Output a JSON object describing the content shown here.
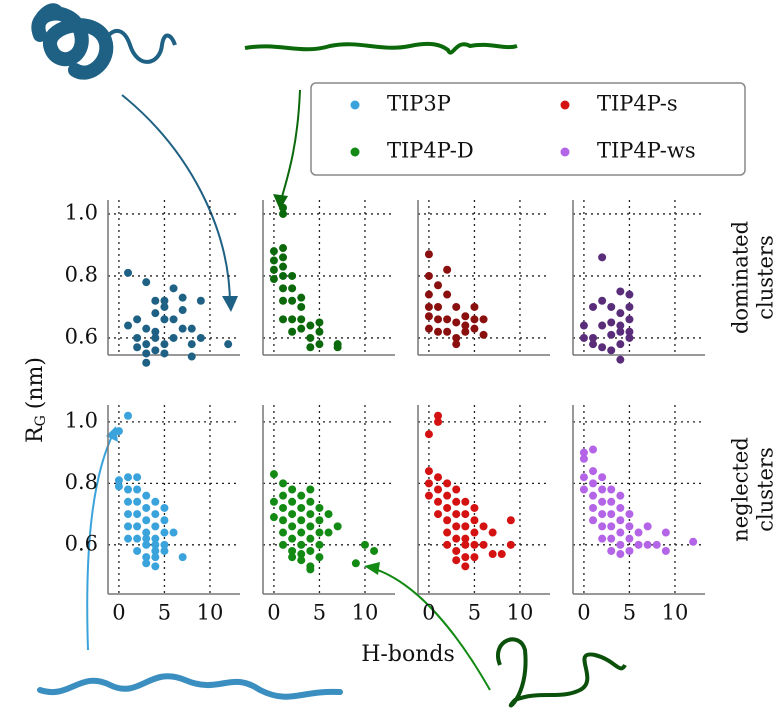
{
  "chart_data": {
    "type": "scatter",
    "xlabel": "H-bonds",
    "ylabel": "R",
    "ylabel_sub": "G",
    "ylabel_unit": "(nm)",
    "series": [
      {
        "name": "TIP3P",
        "color": "#3ba3dc"
      },
      {
        "name": "TIP4P-D",
        "color": "#138a13"
      },
      {
        "name": "TIP4P-s",
        "color": "#d41212"
      },
      {
        "name": "TIP4P-ws",
        "color": "#b464e6"
      }
    ],
    "xlim": [
      -1.2,
      13.3
    ],
    "xticks": [
      0,
      5,
      10
    ],
    "yticks": [
      0.6,
      0.8,
      {
        "value": 1,
        "label": "1.0"
      }
    ],
    "grid": true,
    "rows": [
      {
        "label": [
          "dominated",
          "clusters"
        ],
        "ylim": [
          0.545,
          1.045
        ]
      },
      {
        "label": [
          "neglected",
          "clusters"
        ],
        "ylim": [
          0.44,
          1.055
        ]
      }
    ],
    "panels": [
      {
        "row": 0,
        "col": 0,
        "color": "#1f6184",
        "x": [
          1,
          2,
          3,
          3,
          1,
          2,
          2,
          3,
          3,
          4,
          4,
          4,
          4,
          5,
          5,
          5,
          5,
          5,
          6,
          6,
          6,
          7,
          7,
          7,
          8,
          8,
          8,
          9,
          9,
          12,
          4,
          3
        ],
        "y": [
          0.81,
          0.66,
          0.78,
          0.63,
          0.64,
          0.6,
          0.57,
          0.55,
          0.52,
          0.6,
          0.62,
          0.68,
          0.72,
          0.66,
          0.7,
          0.72,
          0.58,
          0.55,
          0.6,
          0.66,
          0.76,
          0.63,
          0.69,
          0.73,
          0.54,
          0.58,
          0.63,
          0.72,
          0.6,
          0.58,
          0.56,
          0.58
        ]
      },
      {
        "row": 0,
        "col": 1,
        "color": "#0b690b",
        "x": [
          1,
          1,
          0,
          1,
          0,
          0,
          1,
          0,
          1,
          1,
          2,
          2,
          1,
          2,
          3,
          3,
          1,
          2,
          2,
          3,
          3,
          4,
          4,
          5,
          5,
          4,
          5,
          7,
          7,
          1
        ],
        "y": [
          1.02,
          1.0,
          0.88,
          0.89,
          0.85,
          0.82,
          0.86,
          0.79,
          0.8,
          0.83,
          0.8,
          0.76,
          0.72,
          0.72,
          0.73,
          0.7,
          0.66,
          0.66,
          0.62,
          0.63,
          0.66,
          0.64,
          0.6,
          0.65,
          0.62,
          0.57,
          0.58,
          0.58,
          0.57,
          0.76
        ]
      },
      {
        "row": 0,
        "col": 2,
        "color": "#8a1010",
        "x": [
          0,
          0,
          0,
          1,
          2,
          0,
          1,
          0,
          1,
          2,
          0,
          2,
          3,
          3,
          3,
          4,
          4,
          4,
          3,
          5,
          5,
          5,
          6,
          6,
          2,
          1
        ],
        "y": [
          0.87,
          0.8,
          0.74,
          0.77,
          0.82,
          0.7,
          0.7,
          0.67,
          0.66,
          0.66,
          0.63,
          0.62,
          0.7,
          0.65,
          0.6,
          0.67,
          0.64,
          0.62,
          0.58,
          0.7,
          0.66,
          0.63,
          0.61,
          0.66,
          0.74,
          0.62
        ]
      },
      {
        "row": 0,
        "col": 3,
        "color": "#5a2d7a",
        "x": [
          2,
          0,
          0,
          1,
          1,
          1,
          2,
          2,
          3,
          3,
          3,
          3,
          4,
          4,
          4,
          4,
          4,
          5,
          5,
          5,
          5,
          5,
          4,
          2
        ],
        "y": [
          0.86,
          0.64,
          0.6,
          0.7,
          0.6,
          0.58,
          0.64,
          0.57,
          0.7,
          0.65,
          0.61,
          0.56,
          0.75,
          0.68,
          0.64,
          0.62,
          0.53,
          0.74,
          0.7,
          0.66,
          0.62,
          0.6,
          0.58,
          0.72
        ]
      },
      {
        "row": 1,
        "col": 0,
        "color": "#3ba3dc",
        "x": [
          1,
          0,
          0,
          0,
          1,
          1,
          1,
          2,
          2,
          2,
          2,
          1,
          1,
          2,
          3,
          3,
          3,
          3,
          3,
          3,
          4,
          4,
          4,
          4,
          4,
          4,
          4,
          5,
          5,
          5,
          5,
          5,
          6,
          7,
          2,
          3,
          4,
          1,
          2,
          3
        ],
        "y": [
          1.02,
          0.97,
          0.81,
          0.79,
          0.82,
          0.78,
          0.74,
          0.82,
          0.78,
          0.74,
          0.7,
          0.7,
          0.66,
          0.66,
          0.76,
          0.72,
          0.68,
          0.64,
          0.6,
          0.56,
          0.74,
          0.7,
          0.66,
          0.62,
          0.6,
          0.56,
          0.53,
          0.72,
          0.68,
          0.64,
          0.6,
          0.58,
          0.64,
          0.56,
          0.62,
          0.62,
          0.58,
          0.62,
          0.58,
          0.54
        ]
      },
      {
        "row": 1,
        "col": 1,
        "color": "#138a13",
        "x": [
          0,
          0,
          0,
          1,
          1,
          1,
          1,
          1,
          2,
          2,
          2,
          2,
          2,
          3,
          3,
          3,
          3,
          3,
          3,
          4,
          4,
          4,
          4,
          4,
          4,
          4,
          5,
          5,
          5,
          5,
          5,
          6,
          6,
          7,
          9,
          10,
          11,
          2,
          3,
          4,
          1,
          2
        ],
        "y": [
          0.83,
          0.74,
          0.69,
          0.8,
          0.76,
          0.72,
          0.68,
          0.64,
          0.78,
          0.74,
          0.7,
          0.66,
          0.62,
          0.76,
          0.72,
          0.68,
          0.64,
          0.6,
          0.57,
          0.78,
          0.74,
          0.7,
          0.66,
          0.62,
          0.58,
          0.53,
          0.72,
          0.68,
          0.64,
          0.6,
          0.56,
          0.7,
          0.64,
          0.66,
          0.54,
          0.6,
          0.58,
          0.58,
          0.55,
          0.52,
          0.6,
          0.56
        ]
      },
      {
        "row": 1,
        "col": 2,
        "color": "#d41212",
        "x": [
          1,
          1,
          0,
          0,
          0,
          0,
          1,
          1,
          1,
          1,
          2,
          2,
          2,
          2,
          2,
          3,
          3,
          3,
          3,
          3,
          3,
          4,
          4,
          4,
          4,
          4,
          4,
          5,
          5,
          5,
          5,
          5,
          6,
          6,
          7,
          7,
          8,
          9,
          9,
          3,
          4,
          2
        ],
        "y": [
          1.02,
          1.0,
          0.96,
          0.84,
          0.8,
          0.76,
          0.82,
          0.78,
          0.74,
          0.7,
          0.8,
          0.76,
          0.72,
          0.68,
          0.64,
          0.78,
          0.74,
          0.7,
          0.66,
          0.62,
          0.58,
          0.74,
          0.7,
          0.66,
          0.62,
          0.6,
          0.56,
          0.72,
          0.68,
          0.64,
          0.6,
          0.56,
          0.66,
          0.6,
          0.64,
          0.57,
          0.57,
          0.68,
          0.6,
          0.55,
          0.53,
          0.6
        ]
      },
      {
        "row": 1,
        "col": 3,
        "color": "#b464e6",
        "x": [
          0,
          0,
          1,
          0,
          0,
          1,
          1,
          1,
          1,
          2,
          2,
          2,
          2,
          2,
          3,
          3,
          3,
          3,
          3,
          4,
          4,
          4,
          4,
          4,
          5,
          5,
          5,
          5,
          6,
          6,
          7,
          7,
          8,
          9,
          9,
          12,
          2,
          3,
          4,
          1
        ],
        "y": [
          0.9,
          0.88,
          0.91,
          0.82,
          0.78,
          0.84,
          0.8,
          0.76,
          0.72,
          0.82,
          0.78,
          0.74,
          0.7,
          0.66,
          0.78,
          0.74,
          0.7,
          0.66,
          0.62,
          0.76,
          0.72,
          0.68,
          0.64,
          0.6,
          0.7,
          0.66,
          0.62,
          0.58,
          0.64,
          0.6,
          0.66,
          0.6,
          0.6,
          0.64,
          0.58,
          0.61,
          0.62,
          0.58,
          0.57,
          0.68
        ]
      }
    ]
  }
}
